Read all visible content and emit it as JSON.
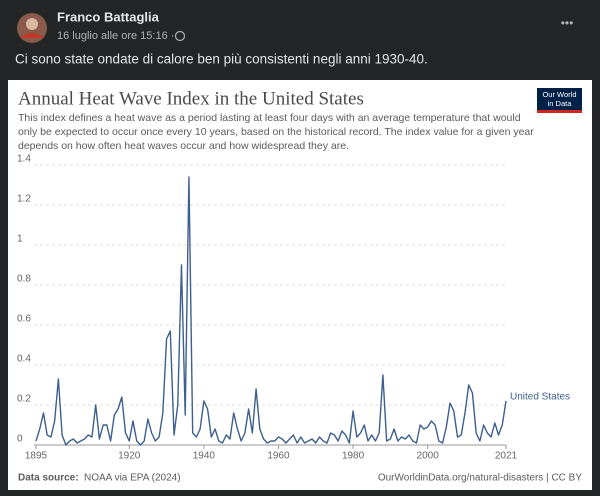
{
  "post": {
    "author": "Franco Battaglia",
    "time": "16 luglio alle ore 15:16 ·",
    "menu": "•••",
    "text": "Ci sono state ondate di calore ben più consistenti negli anni 1930-40."
  },
  "logo": {
    "line1": "Our World",
    "line2": "in Data"
  },
  "footer": {
    "source_label": "Data source:",
    "source": "NOAA via EPA (2024)",
    "link": "OurWorldinData.org/natural-disasters | CC BY"
  },
  "chart_data": {
    "type": "line",
    "title": "Annual Heat Wave Index in the United States",
    "subtitle": [
      "This index defines a heat wave as a period lasting at least four days with an average temperature that would",
      "only be expected to occur once every 10 years, based on the historical record. The index value for a given year",
      "depends on how often heat waves occur and how widespread they are."
    ],
    "x": [
      1895,
      1896,
      1897,
      1898,
      1899,
      1900,
      1901,
      1902,
      1903,
      1904,
      1905,
      1906,
      1907,
      1908,
      1909,
      1910,
      1911,
      1912,
      1913,
      1914,
      1915,
      1916,
      1917,
      1918,
      1919,
      1920,
      1921,
      1922,
      1923,
      1924,
      1925,
      1926,
      1927,
      1928,
      1929,
      1930,
      1931,
      1932,
      1933,
      1934,
      1935,
      1936,
      1937,
      1938,
      1939,
      1940,
      1941,
      1942,
      1943,
      1944,
      1945,
      1946,
      1947,
      1948,
      1949,
      1950,
      1951,
      1952,
      1953,
      1954,
      1955,
      1956,
      1957,
      1958,
      1959,
      1960,
      1961,
      1962,
      1963,
      1964,
      1965,
      1966,
      1967,
      1968,
      1969,
      1970,
      1971,
      1972,
      1973,
      1974,
      1975,
      1976,
      1977,
      1978,
      1979,
      1980,
      1981,
      1982,
      1983,
      1984,
      1985,
      1986,
      1987,
      1988,
      1989,
      1990,
      1991,
      1992,
      1993,
      1994,
      1995,
      1996,
      1997,
      1998,
      1999,
      2000,
      2001,
      2002,
      2003,
      2004,
      2005,
      2006,
      2007,
      2008,
      2009,
      2010,
      2011,
      2012,
      2013,
      2014,
      2015,
      2016,
      2017,
      2018,
      2019,
      2020,
      2021
    ],
    "series": [
      {
        "name": "United States",
        "color": "#3d5f8f",
        "values": [
          0.02,
          0.08,
          0.16,
          0.05,
          0.04,
          0.12,
          0.33,
          0.05,
          0,
          0.02,
          0.03,
          0.01,
          0.02,
          0.03,
          0.05,
          0.04,
          0.2,
          0.03,
          0.1,
          0.1,
          0.02,
          0.15,
          0.18,
          0.24,
          0.06,
          0.02,
          0.12,
          0.02,
          0,
          0.02,
          0.13,
          0.06,
          0.02,
          0.04,
          0.16,
          0.53,
          0.57,
          0.05,
          0.2,
          0.9,
          0.15,
          1.34,
          0.06,
          0.04,
          0.08,
          0.22,
          0.18,
          0.04,
          0.08,
          0.02,
          0.01,
          0.05,
          0.03,
          0.16,
          0.08,
          0.02,
          0.06,
          0.18,
          0.06,
          0.28,
          0.08,
          0.03,
          0.01,
          0.02,
          0.02,
          0.04,
          0.03,
          0.01,
          0.03,
          0.05,
          0.01,
          0.04,
          0.01,
          0.02,
          0.03,
          0.01,
          0.04,
          0.02,
          0.01,
          0.06,
          0.05,
          0.02,
          0.07,
          0.05,
          0.01,
          0.17,
          0.04,
          0.06,
          0.1,
          0.02,
          0.05,
          0.02,
          0.06,
          0.35,
          0.02,
          0.03,
          0.08,
          0.02,
          0.04,
          0.03,
          0.05,
          0.02,
          0.01,
          0.1,
          0.08,
          0.09,
          0.12,
          0.1,
          0.02,
          0.01,
          0.09,
          0.21,
          0.17,
          0.04,
          0.05,
          0.16,
          0.3,
          0.26,
          0.06,
          0.02,
          0.1,
          0.06,
          0.04,
          0.11,
          0.05,
          0.1,
          0.22
        ]
      }
    ],
    "xlim": [
      1895,
      2021
    ],
    "xticks": [
      1895,
      1920,
      1940,
      1960,
      1980,
      2000,
      2021
    ],
    "ylim": [
      0,
      1.4
    ],
    "yticks": [
      0,
      0.2,
      0.4,
      0.6,
      0.8,
      1,
      1.2,
      1.4
    ],
    "grid": true
  }
}
